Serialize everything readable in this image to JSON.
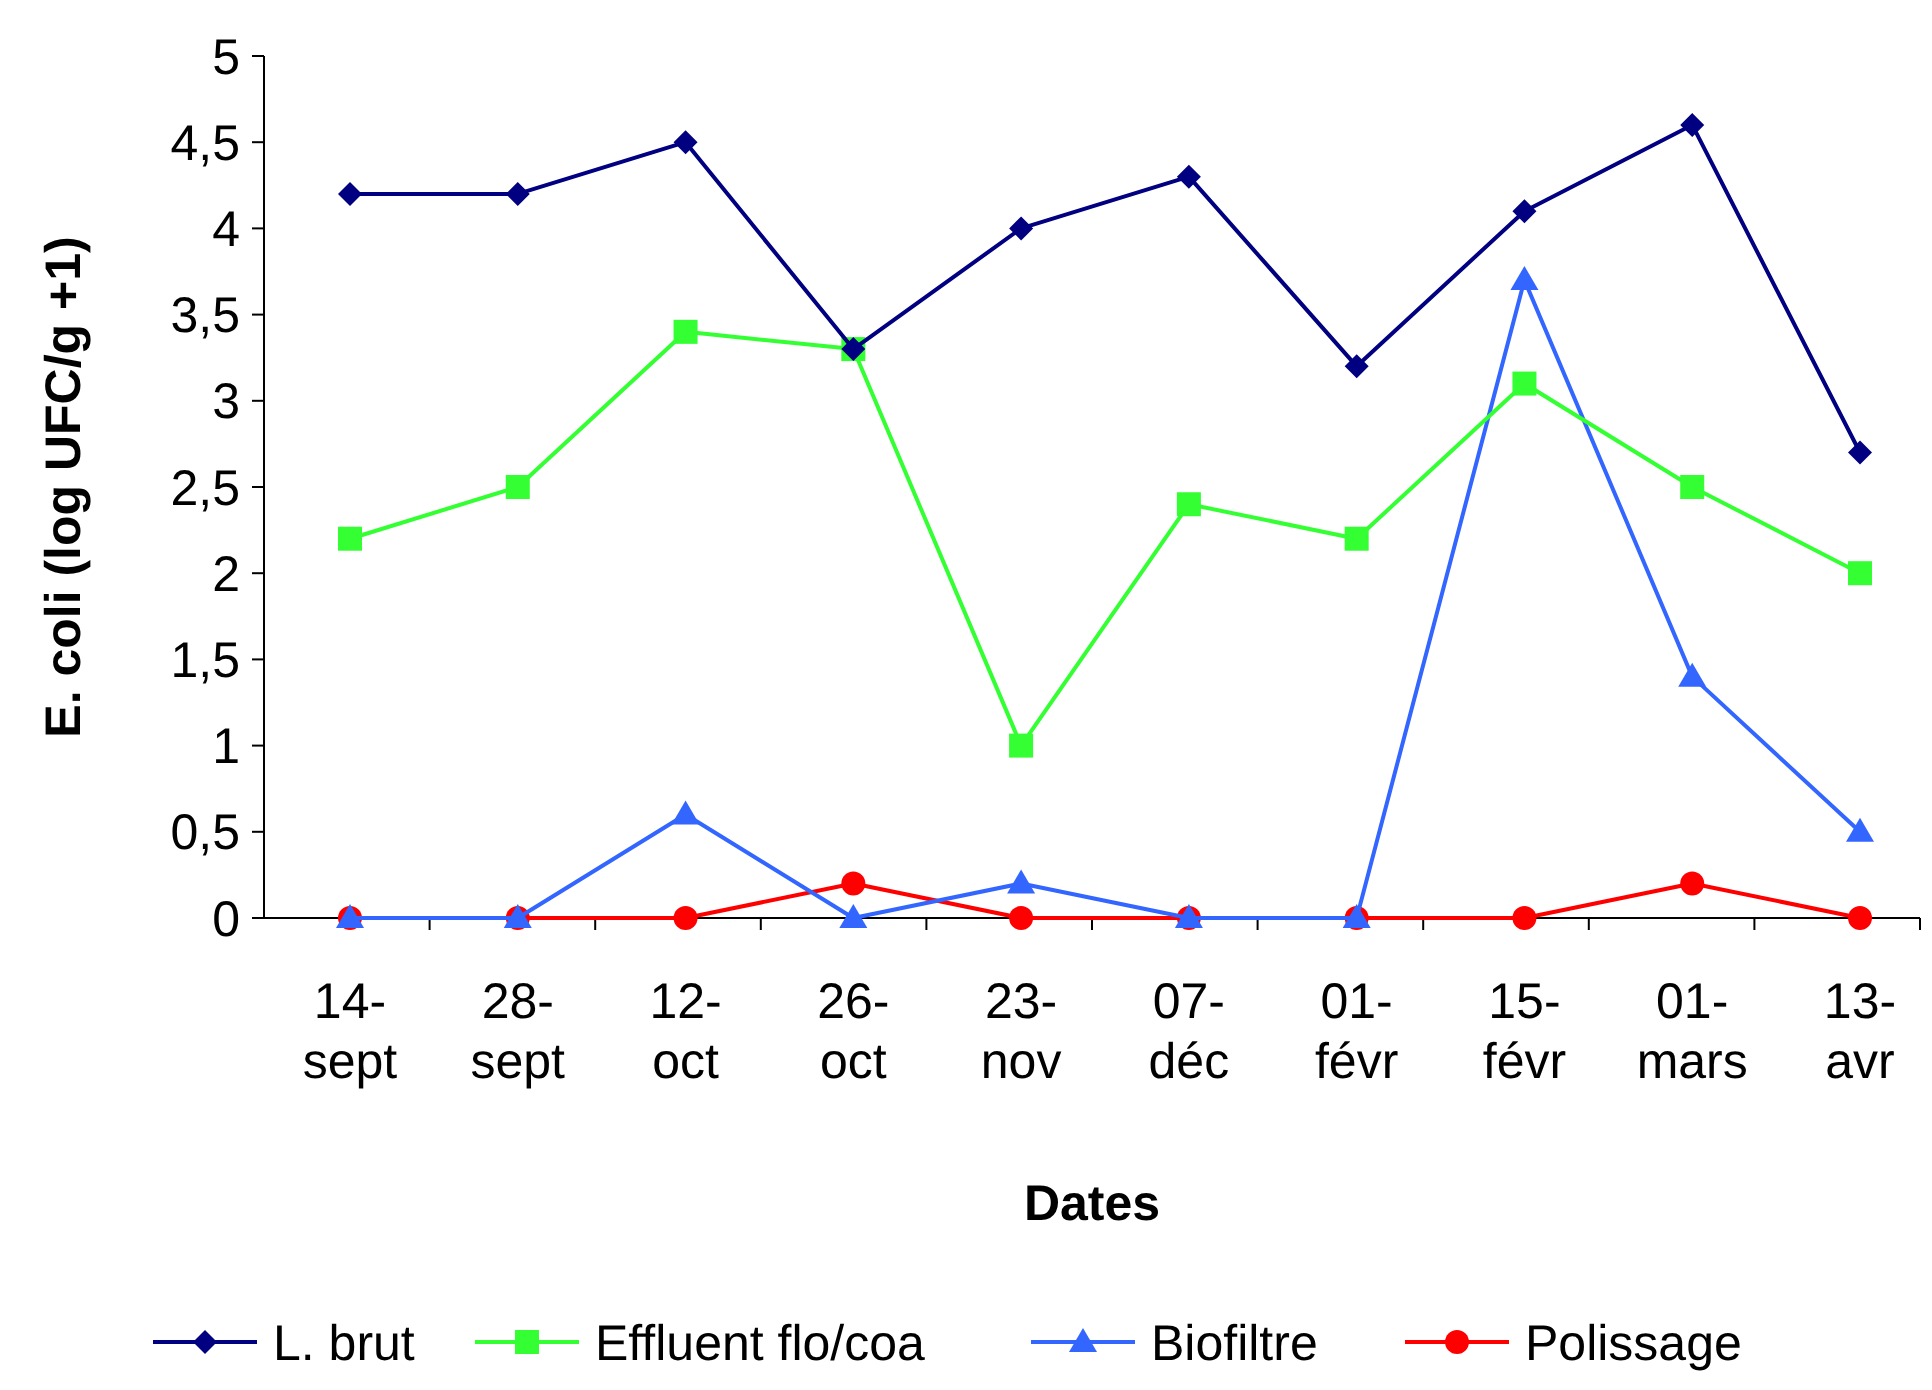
{
  "chart_data": {
    "type": "line",
    "xlabel": "Dates",
    "ylabel": "E. coli (log UFC/g +1)",
    "categories": [
      "14-sept",
      "28-sept",
      "12-oct",
      "26-oct",
      "23-nov",
      "07-déc",
      "01-févr",
      "15-févr",
      "01-mars",
      "13-avr"
    ],
    "series": [
      {
        "name": "L. brut",
        "color": "#000080",
        "marker": "diamond",
        "values": [
          4.2,
          4.2,
          4.5,
          3.3,
          4.0,
          4.3,
          3.2,
          4.1,
          4.6,
          2.7
        ]
      },
      {
        "name": "Effluent flo/coa",
        "color": "#33ff33",
        "marker": "square",
        "values": [
          2.2,
          2.5,
          3.4,
          3.3,
          1.0,
          2.4,
          2.2,
          3.1,
          2.5,
          2.0
        ]
      },
      {
        "name": "Biofiltre",
        "color": "#3366ff",
        "marker": "triangle",
        "values": [
          0,
          0,
          0.6,
          0,
          0.2,
          0,
          0,
          3.7,
          1.4,
          0.5
        ]
      },
      {
        "name": "Polissage",
        "color": "#ff0000",
        "marker": "circle",
        "values": [
          0,
          0,
          0,
          0.2,
          0,
          0,
          0,
          0,
          0.2,
          0
        ]
      }
    ],
    "ylim": [
      0,
      5
    ],
    "yticks": [
      0,
      {
        "value": 0.5,
        "label": "0,5"
      },
      1,
      {
        "value": 1.5,
        "label": "1,5"
      },
      2,
      {
        "value": 2.5,
        "label": "2,5"
      },
      3,
      {
        "value": 3.5,
        "label": "3,5"
      },
      4,
      {
        "value": 4.5,
        "label": "4,5"
      },
      5
    ],
    "grid": false,
    "legend": "bottom",
    "line_style": "solid"
  }
}
